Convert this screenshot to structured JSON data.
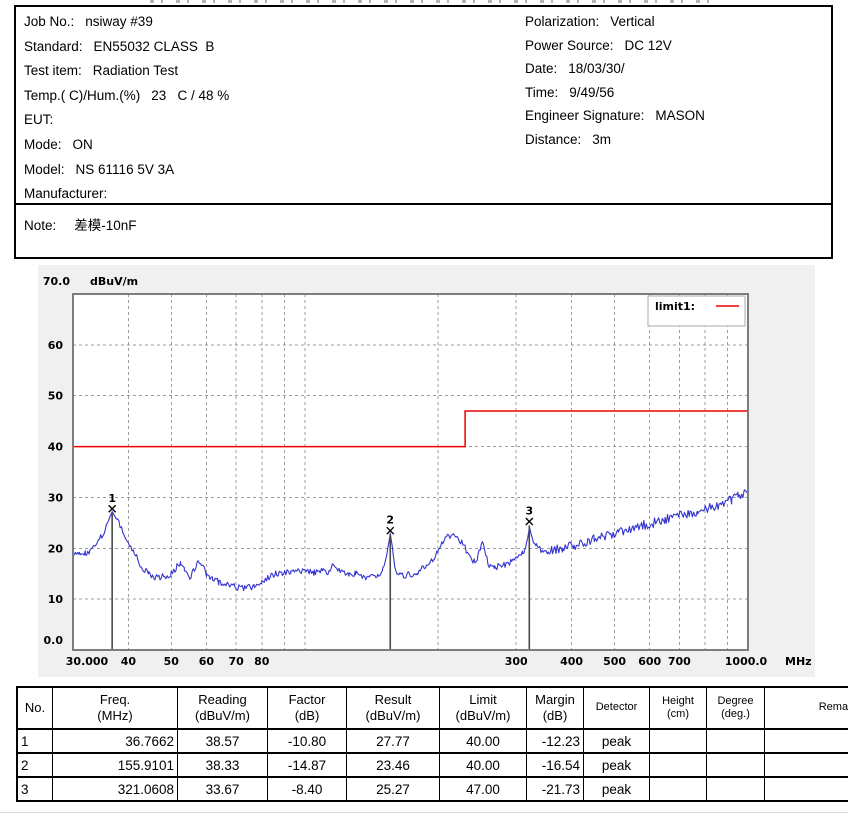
{
  "header": {
    "left": [
      {
        "label": "Job No.:",
        "value": "nsiway #39"
      },
      {
        "label": "Standard:",
        "value": "EN55032 CLASS  B"
      },
      {
        "label": "Test item:",
        "value": "Radiation Test"
      },
      {
        "label": "Temp.( C)/Hum.(%)",
        "value": "23   C / 48 %"
      },
      {
        "label": "EUT:",
        "value": ""
      },
      {
        "label": "Mode:",
        "value": "ON"
      },
      {
        "label": "Model:",
        "value": "NS 61116 5V 3A"
      },
      {
        "label": "Manufacturer:",
        "value": ""
      }
    ],
    "right": [
      {
        "label": "Polarization:",
        "value": "Vertical"
      },
      {
        "label": "Power Source:",
        "value": "DC 12V"
      },
      {
        "label": "Date:",
        "value": "18/03/30/"
      },
      {
        "label": "Time:",
        "value": "9/49/56"
      },
      {
        "label": "Engineer Signature:",
        "value": "MASON"
      },
      {
        "label": "Distance:",
        "value": "3m"
      }
    ]
  },
  "note": {
    "label": "Note:",
    "value": "差模-10nF"
  },
  "chart_data": {
    "type": "line",
    "title": "",
    "x_axis": {
      "scale": "log",
      "min": 30,
      "max": 1000,
      "unit": "MHz",
      "ticks": [
        {
          "f": 30,
          "label": "30.000"
        },
        {
          "f": 40,
          "label": "40"
        },
        {
          "f": 50,
          "label": "50"
        },
        {
          "f": 60,
          "label": "60"
        },
        {
          "f": 70,
          "label": "70"
        },
        {
          "f": 80,
          "label": "80"
        },
        {
          "f": 300,
          "label": "300"
        },
        {
          "f": 400,
          "label": "400"
        },
        {
          "f": 500,
          "label": "500"
        },
        {
          "f": 600,
          "label": "600"
        },
        {
          "f": 700,
          "label": "700"
        },
        {
          "f": 1000,
          "label": "1000.0"
        }
      ],
      "gridlines": [
        40,
        50,
        60,
        70,
        80,
        90,
        100,
        200,
        300,
        400,
        500,
        600,
        700,
        800,
        900
      ]
    },
    "y_axis": {
      "min": 0,
      "max": 70,
      "unit": "dBuV/m",
      "top_label": "70.0",
      "bottom_label": "0.0",
      "ticks": [
        60,
        50,
        40,
        30,
        20,
        10
      ],
      "gridlines": [
        10,
        20,
        30,
        40,
        50,
        60
      ]
    },
    "legend": {
      "label": "limit1:",
      "color": "#ee0000",
      "position": "top-right"
    },
    "limit_line": {
      "name": "limit1",
      "color": "#ee0000",
      "points": [
        [
          30,
          40
        ],
        [
          230,
          40
        ],
        [
          230,
          47
        ],
        [
          1000,
          47
        ]
      ]
    },
    "trace": {
      "color": "#3434cf",
      "noise_db": 0.62,
      "noise_db_high": 0.95,
      "points": [
        [
          30,
          19.3
        ],
        [
          31,
          18.7
        ],
        [
          32,
          19.0
        ],
        [
          33,
          19.6
        ],
        [
          34,
          20.8
        ],
        [
          35,
          22.8
        ],
        [
          36,
          25.3
        ],
        [
          36.77,
          27.3
        ],
        [
          37.6,
          25.8
        ],
        [
          38.6,
          23.8
        ],
        [
          40,
          21.2
        ],
        [
          41.5,
          18.6
        ],
        [
          43,
          16.2
        ],
        [
          44.5,
          14.8
        ],
        [
          46,
          14.3
        ],
        [
          48,
          14.4
        ],
        [
          50,
          15.0
        ],
        [
          51.5,
          16.4
        ],
        [
          52.5,
          17.2
        ],
        [
          53.5,
          16.0
        ],
        [
          55,
          13.9
        ],
        [
          56.5,
          16.2
        ],
        [
          57.5,
          17.8
        ],
        [
          58.5,
          16.8
        ],
        [
          60,
          14.9
        ],
        [
          62,
          14.0
        ],
        [
          64,
          13.4
        ],
        [
          66,
          12.9
        ],
        [
          68,
          12.6
        ],
        [
          71,
          12.3
        ],
        [
          74,
          12.2
        ],
        [
          77,
          12.5
        ],
        [
          80,
          13.4
        ],
        [
          83,
          14.3
        ],
        [
          86,
          15.0
        ],
        [
          89,
          15.2
        ],
        [
          93,
          15.3
        ],
        [
          97,
          15.4
        ],
        [
          101,
          15.5
        ],
        [
          105,
          15.3
        ],
        [
          110,
          15.6
        ],
        [
          114,
          15.1
        ],
        [
          116,
          17.4
        ],
        [
          118,
          15.6
        ],
        [
          122,
          15.4
        ],
        [
          126,
          15.1
        ],
        [
          130,
          14.9
        ],
        [
          134,
          14.7
        ],
        [
          138,
          14.4
        ],
        [
          142,
          14.3
        ],
        [
          146,
          14.7
        ],
        [
          150,
          15.8
        ],
        [
          153,
          18.5
        ],
        [
          155.91,
          22.9
        ],
        [
          157.5,
          20.5
        ],
        [
          159.5,
          16.5
        ],
        [
          162,
          15.0
        ],
        [
          165,
          14.7
        ],
        [
          168,
          14.6
        ],
        [
          172,
          15.0
        ],
        [
          176,
          14.8
        ],
        [
          180,
          15.3
        ],
        [
          184,
          16.0
        ],
        [
          188,
          16.2
        ],
        [
          192,
          17.0
        ],
        [
          196,
          18.3
        ],
        [
          200,
          19.8
        ],
        [
          205,
          21.3
        ],
        [
          210,
          22.3
        ],
        [
          214,
          22.6
        ],
        [
          218,
          22.3
        ],
        [
          222,
          21.8
        ],
        [
          226,
          21.3
        ],
        [
          230,
          20.2
        ],
        [
          234,
          18.6
        ],
        [
          238,
          17.7
        ],
        [
          242,
          17.6
        ],
        [
          246,
          18.3
        ],
        [
          250,
          20.6
        ],
        [
          253,
          20.9
        ],
        [
          256,
          18.6
        ],
        [
          259,
          17.1
        ],
        [
          263,
          16.5
        ],
        [
          268,
          16.3
        ],
        [
          273,
          16.4
        ],
        [
          278,
          16.6
        ],
        [
          283,
          16.8
        ],
        [
          288,
          17.1
        ],
        [
          293,
          17.4
        ],
        [
          298,
          17.7
        ],
        [
          304,
          18.1
        ],
        [
          310,
          18.9
        ],
        [
          315,
          20.2
        ],
        [
          318,
          21.8
        ],
        [
          321.06,
          24.2
        ],
        [
          324,
          22.8
        ],
        [
          328,
          21.2
        ],
        [
          333,
          20.3
        ],
        [
          339,
          19.8
        ],
        [
          346,
          19.6
        ],
        [
          354,
          19.5
        ],
        [
          362,
          19.6
        ],
        [
          372,
          19.8
        ],
        [
          382,
          20.0
        ],
        [
          392,
          20.2
        ],
        [
          405,
          20.6
        ],
        [
          420,
          21.0
        ],
        [
          435,
          21.4
        ],
        [
          450,
          21.8
        ],
        [
          470,
          22.3
        ],
        [
          490,
          22.8
        ],
        [
          510,
          23.2
        ],
        [
          530,
          23.6
        ],
        [
          550,
          24.0
        ],
        [
          575,
          24.4
        ],
        [
          600,
          24.8
        ],
        [
          625,
          25.2
        ],
        [
          650,
          25.6
        ],
        [
          680,
          26.1
        ],
        [
          710,
          26.5
        ],
        [
          740,
          26.9
        ],
        [
          770,
          27.3
        ],
        [
          800,
          27.7
        ],
        [
          830,
          28.1
        ],
        [
          860,
          28.5
        ],
        [
          890,
          29.0
        ],
        [
          920,
          29.5
        ],
        [
          950,
          30.1
        ],
        [
          975,
          30.6
        ],
        [
          1000,
          31.1
        ]
      ]
    },
    "peaks": [
      {
        "no": "1",
        "freq": 36.7662,
        "level": 27.77
      },
      {
        "no": "2",
        "freq": 155.9101,
        "level": 23.46
      },
      {
        "no": "3",
        "freq": 321.0608,
        "level": 25.27
      }
    ]
  },
  "table": {
    "columns": [
      {
        "title": "No.",
        "sub": ""
      },
      {
        "title": "Freq.",
        "sub": "(MHz)"
      },
      {
        "title": "Reading",
        "sub": "(dBuV/m)"
      },
      {
        "title": "Factor",
        "sub": "(dB)"
      },
      {
        "title": "Result",
        "sub": "(dBuV/m)"
      },
      {
        "title": "Limit",
        "sub": "(dBuV/m)"
      },
      {
        "title": "Margin",
        "sub": "(dB)"
      },
      {
        "title": "Detector",
        "sub": ""
      },
      {
        "title": "Height",
        "sub": "(cm)"
      },
      {
        "title": "Degree",
        "sub": "(deg.)"
      },
      {
        "title": "Remark",
        "sub": ""
      }
    ],
    "rows": [
      [
        "1",
        "36.7662",
        "38.57",
        "-10.80",
        "27.77",
        "40.00",
        "-12.23",
        "peak",
        "",
        "",
        ""
      ],
      [
        "2",
        "155.9101",
        "38.33",
        "-14.87",
        "23.46",
        "40.00",
        "-16.54",
        "peak",
        "",
        "",
        ""
      ],
      [
        "3",
        "321.0608",
        "33.67",
        "-8.40",
        "25.27",
        "47.00",
        "-21.73",
        "peak",
        "",
        "",
        ""
      ]
    ]
  }
}
